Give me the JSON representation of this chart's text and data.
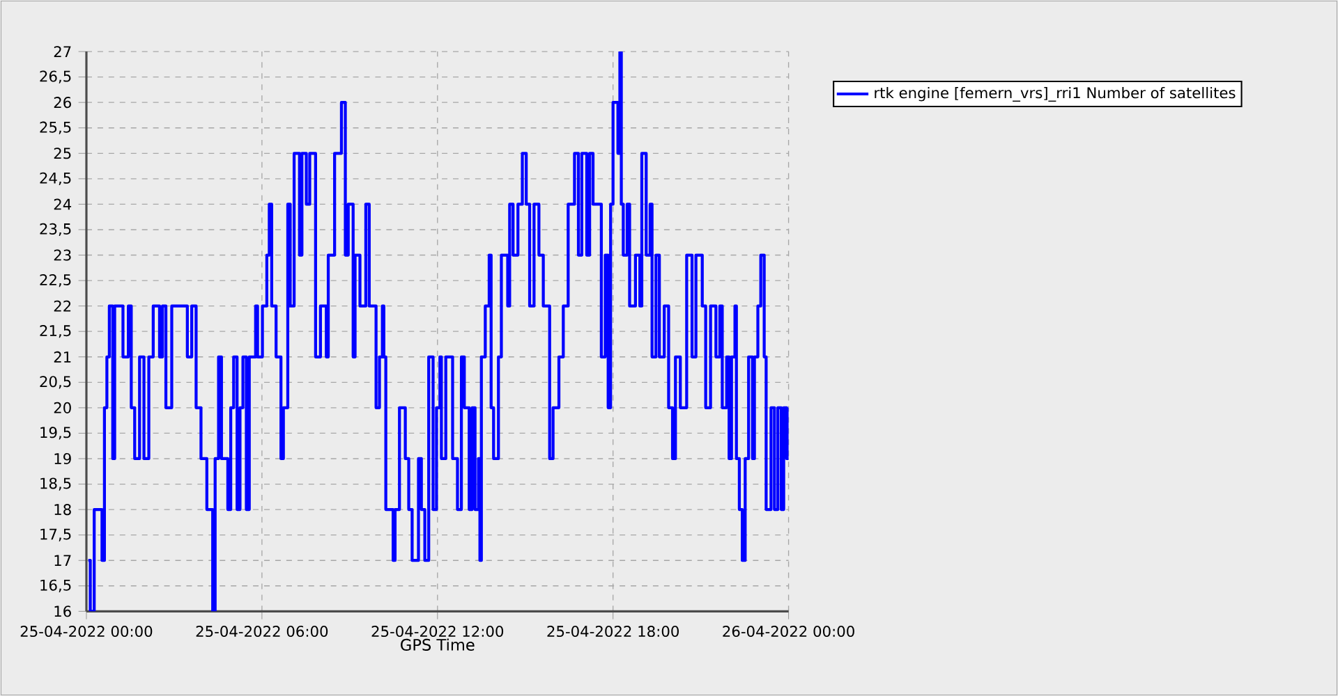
{
  "chart_data": {
    "type": "step",
    "xlabel": "GPS Time",
    "xlim": [
      "2022-04-25T00:00",
      "2022-04-26T00:00"
    ],
    "xticks": [
      {
        "value": "2022-04-25T00:00",
        "label": "25-04-2022 00:00"
      },
      {
        "value": "2022-04-25T06:00",
        "label": "25-04-2022 06:00"
      },
      {
        "value": "2022-04-25T12:00",
        "label": "25-04-2022 12:00"
      },
      {
        "value": "2022-04-25T18:00",
        "label": "25-04-2022 18:00"
      },
      {
        "value": "2022-04-26T00:00",
        "label": "26-04-2022 00:00"
      }
    ],
    "ylim": [
      16,
      27
    ],
    "yticks": [
      16,
      {
        "value": 16.5,
        "label": "16,5"
      },
      17,
      {
        "value": 17.5,
        "label": "17,5"
      },
      18,
      {
        "value": 18.5,
        "label": "18,5"
      },
      19,
      {
        "value": 19.5,
        "label": "19,5"
      },
      20,
      {
        "value": 20.5,
        "label": "20,5"
      },
      21,
      {
        "value": 21.5,
        "label": "21,5"
      },
      22,
      {
        "value": 22.5,
        "label": "22,5"
      },
      23,
      {
        "value": 23.5,
        "label": "23,5"
      },
      24,
      {
        "value": 24.5,
        "label": "24,5"
      },
      25,
      {
        "value": 25.5,
        "label": "25,5"
      },
      26,
      {
        "value": 26.5,
        "label": "26,5"
      },
      27
    ],
    "grid": true,
    "legend": "top right",
    "line_style": "solid",
    "series": [
      {
        "name": "rtk engine [femern_vrs]_rri1 Number of satellites",
        "color": "#0000ff",
        "x": [
          "2022-04-25T00:04",
          "2022-04-25T00:08",
          "2022-04-25T00:16",
          "2022-04-25T00:32",
          "2022-04-25T00:37",
          "2022-04-25T00:42",
          "2022-04-25T00:47",
          "2022-04-25T00:54",
          "2022-04-25T00:58",
          "2022-04-25T01:15",
          "2022-04-25T01:26",
          "2022-04-25T01:32",
          "2022-04-25T01:39",
          "2022-04-25T01:49",
          "2022-04-25T01:58",
          "2022-04-25T02:08",
          "2022-04-25T02:17",
          "2022-04-25T02:30",
          "2022-04-25T02:36",
          "2022-04-25T02:43",
          "2022-04-25T02:55",
          "2022-04-25T03:27",
          "2022-04-25T03:36",
          "2022-04-25T03:45",
          "2022-04-25T03:55",
          "2022-04-25T04:07",
          "2022-04-25T04:19",
          "2022-04-25T04:24",
          "2022-04-25T04:31",
          "2022-04-25T04:37",
          "2022-04-25T04:50",
          "2022-04-25T04:56",
          "2022-04-25T05:02",
          "2022-04-25T05:09",
          "2022-04-25T05:15",
          "2022-04-25T05:21",
          "2022-04-25T05:28",
          "2022-04-25T05:34",
          "2022-04-25T05:47",
          "2022-04-25T05:51",
          "2022-04-25T06:01",
          "2022-04-25T06:10",
          "2022-04-25T06:15",
          "2022-04-25T06:20",
          "2022-04-25T06:29",
          "2022-04-25T06:39",
          "2022-04-25T06:44",
          "2022-04-25T06:53",
          "2022-04-25T06:58",
          "2022-04-25T07:06",
          "2022-04-25T07:17",
          "2022-04-25T07:22",
          "2022-04-25T07:31",
          "2022-04-25T07:38",
          "2022-04-25T07:50",
          "2022-04-25T08:00",
          "2022-04-25T08:12",
          "2022-04-25T08:16",
          "2022-04-25T08:29",
          "2022-04-25T08:43",
          "2022-04-25T08:51",
          "2022-04-25T08:57",
          "2022-04-25T09:07",
          "2022-04-25T09:11",
          "2022-04-25T09:21",
          "2022-04-25T09:33",
          "2022-04-25T09:40",
          "2022-04-25T09:54",
          "2022-04-25T10:01",
          "2022-04-25T10:07",
          "2022-04-25T10:10",
          "2022-04-25T10:14",
          "2022-04-25T10:29",
          "2022-04-25T10:33",
          "2022-04-25T10:42",
          "2022-04-25T10:54",
          "2022-04-25T11:01",
          "2022-04-25T11:08",
          "2022-04-25T11:21",
          "2022-04-25T11:27",
          "2022-04-25T11:34",
          "2022-04-25T11:42",
          "2022-04-25T11:51",
          "2022-04-25T11:58",
          "2022-04-25T12:05",
          "2022-04-25T12:08",
          "2022-04-25T12:17",
          "2022-04-25T12:31",
          "2022-04-25T12:41",
          "2022-04-25T12:49",
          "2022-04-25T12:55",
          "2022-04-25T13:05",
          "2022-04-25T13:11",
          "2022-04-25T13:17",
          "2022-04-25T13:24",
          "2022-04-25T13:27",
          "2022-04-25T13:30",
          "2022-04-25T13:38",
          "2022-04-25T13:46",
          "2022-04-25T13:50",
          "2022-04-25T13:55",
          "2022-04-25T14:05",
          "2022-04-25T14:11",
          "2022-04-25T14:24",
          "2022-04-25T14:28",
          "2022-04-25T14:35",
          "2022-04-25T14:45",
          "2022-04-25T14:54",
          "2022-04-25T15:02",
          "2022-04-25T15:09",
          "2022-04-25T15:18",
          "2022-04-25T15:28",
          "2022-04-25T15:37",
          "2022-04-25T15:50",
          "2022-04-25T15:57",
          "2022-04-25T16:09",
          "2022-04-25T16:18",
          "2022-04-25T16:28",
          "2022-04-25T16:41",
          "2022-04-25T16:49",
          "2022-04-25T16:56",
          "2022-04-25T17:06",
          "2022-04-25T17:12",
          "2022-04-25T17:19",
          "2022-04-25T17:31",
          "2022-04-25T17:36",
          "2022-04-25T17:44",
          "2022-04-25T17:50",
          "2022-04-25T17:55",
          "2022-04-25T18:00",
          "2022-04-25T18:10",
          "2022-04-25T18:14",
          "2022-04-25T18:17",
          "2022-04-25T18:21",
          "2022-04-25T18:29",
          "2022-04-25T18:34",
          "2022-04-25T18:46",
          "2022-04-25T18:55",
          "2022-04-25T18:59",
          "2022-04-25T19:08",
          "2022-04-25T19:16",
          "2022-04-25T19:20",
          "2022-04-25T19:28",
          "2022-04-25T19:35",
          "2022-04-25T19:45",
          "2022-04-25T19:54",
          "2022-04-25T20:02",
          "2022-04-25T20:08",
          "2022-04-25T20:18",
          "2022-04-25T20:31",
          "2022-04-25T20:42",
          "2022-04-25T20:50",
          "2022-04-25T21:03",
          "2022-04-25T21:10",
          "2022-04-25T21:20",
          "2022-04-25T21:31",
          "2022-04-25T21:39",
          "2022-04-25T21:44",
          "2022-04-25T21:53",
          "2022-04-25T21:58",
          "2022-04-25T22:03",
          "2022-04-25T22:10",
          "2022-04-25T22:13",
          "2022-04-25T22:19",
          "2022-04-25T22:25",
          "2022-04-25T22:31",
          "2022-04-25T22:38",
          "2022-04-25T22:46",
          "2022-04-25T22:50",
          "2022-04-25T22:57",
          "2022-04-25T23:03",
          "2022-04-25T23:10",
          "2022-04-25T23:14",
          "2022-04-25T23:24",
          "2022-04-25T23:31",
          "2022-04-25T23:38",
          "2022-04-25T23:45",
          "2022-04-25T23:50",
          "2022-04-25T23:56",
          "2022-04-26T00:00"
        ],
        "values": [
          17,
          16,
          18,
          17,
          20,
          21,
          22,
          19,
          22,
          21,
          22,
          20,
          19,
          21,
          19,
          21,
          22,
          21,
          22,
          20,
          22,
          21,
          22,
          20,
          19,
          18,
          16,
          19,
          21,
          19,
          18,
          20,
          21,
          18,
          20,
          21,
          18,
          21,
          22,
          21,
          22,
          23,
          24,
          22,
          21,
          19,
          20,
          24,
          22,
          25,
          23,
          25,
          24,
          25,
          21,
          22,
          21,
          23,
          25,
          26,
          23,
          24,
          21,
          23,
          22,
          24,
          22,
          20,
          21,
          22,
          21,
          18,
          17,
          18,
          20,
          19,
          18,
          17,
          19,
          18,
          17,
          21,
          18,
          20,
          21,
          19,
          21,
          19,
          18,
          21,
          20,
          18,
          20,
          18,
          19,
          17,
          21,
          22,
          23,
          20,
          19,
          21,
          23,
          22,
          24,
          23,
          24,
          25,
          24,
          22,
          24,
          23,
          22,
          19,
          20,
          21,
          22,
          24,
          25,
          23,
          25,
          23,
          25,
          24,
          24,
          21,
          23,
          20,
          24,
          26,
          25,
          27,
          24,
          23,
          24,
          22,
          23,
          22,
          25,
          23,
          24,
          21,
          23,
          21,
          22,
          20,
          19,
          21,
          20,
          23,
          21,
          23,
          22,
          20,
          22,
          21,
          22,
          20,
          21,
          19,
          21,
          22,
          19,
          18,
          17,
          19,
          21,
          19,
          21,
          22,
          23,
          21,
          18,
          20,
          18,
          20,
          18,
          20,
          19,
          20
        ]
      }
    ]
  }
}
